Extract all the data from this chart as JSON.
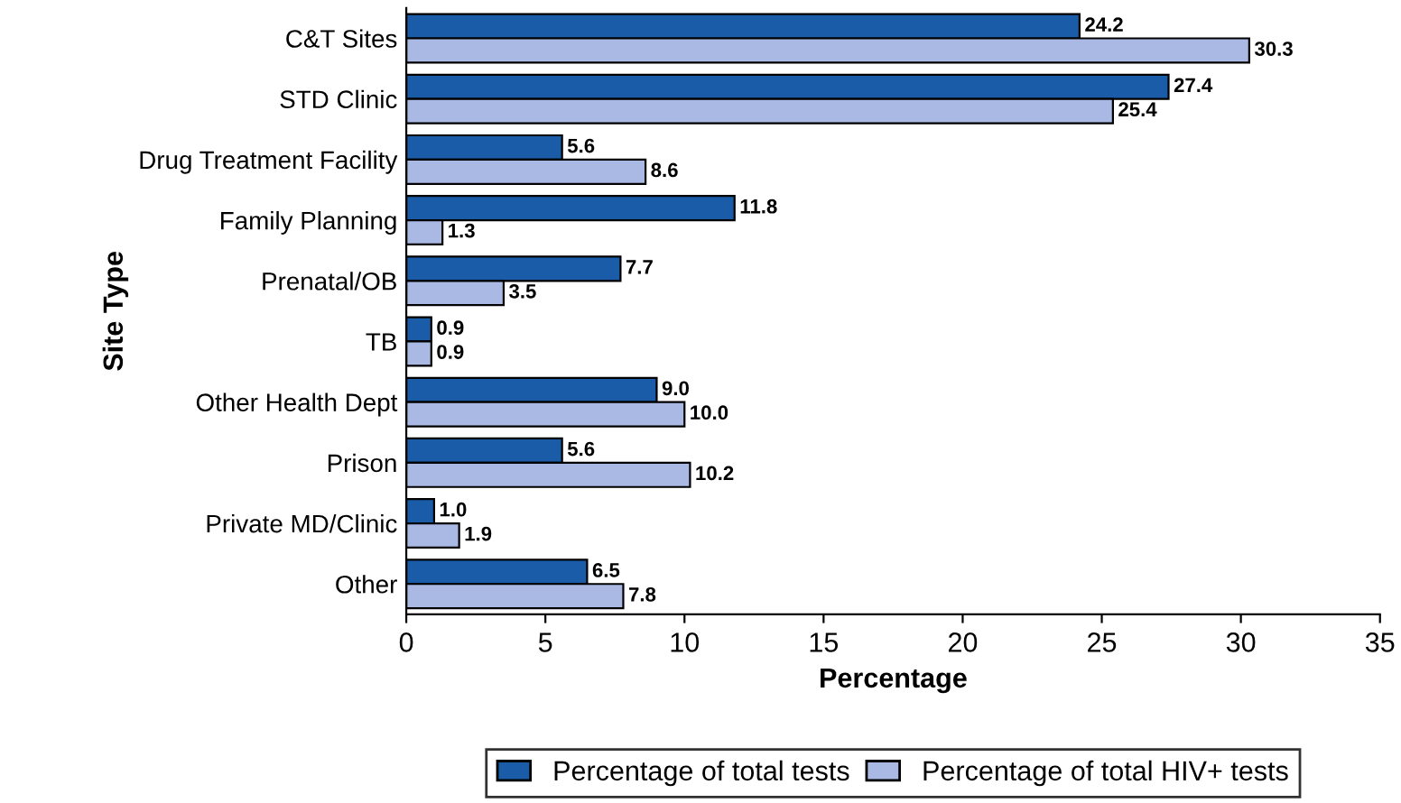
{
  "chart_data": {
    "type": "bar",
    "orientation": "horizontal",
    "xlabel": "Percentage",
    "ylabel": "Site Type",
    "categories": [
      "C&T Sites",
      "STD Clinic",
      "Drug Treatment Facility",
      "Family Planning",
      "Prenatal/OB",
      "TB",
      "Other Health Dept",
      "Prison",
      "Private MD/Clinic",
      "Other"
    ],
    "series": [
      {
        "name": "Percentage of total tests",
        "color": "#1a5ca8",
        "values": [
          24.2,
          27.4,
          5.6,
          11.8,
          7.7,
          0.9,
          9.0,
          5.6,
          1.0,
          6.5
        ],
        "value_labels": [
          "24.2",
          "27.4",
          "5.6",
          "11.8",
          "7.7",
          "0.9",
          "9.0",
          "5.6",
          "1.0",
          "6.5"
        ]
      },
      {
        "name": "Percentage of total HIV+ tests",
        "color": "#a9b9e3",
        "values": [
          30.3,
          25.4,
          8.6,
          1.3,
          3.5,
          0.9,
          10.0,
          10.2,
          1.9,
          7.8
        ],
        "value_labels": [
          "30.3",
          "25.4",
          "8.6",
          "1.3",
          "3.5",
          "0.9",
          "10.0",
          "10.2",
          "1.9",
          "7.8"
        ]
      }
    ],
    "xlim": [
      0,
      35
    ],
    "xticks": [
      0,
      5,
      10,
      15,
      20,
      25,
      30,
      35
    ],
    "legend": "bottom",
    "grid": false
  }
}
